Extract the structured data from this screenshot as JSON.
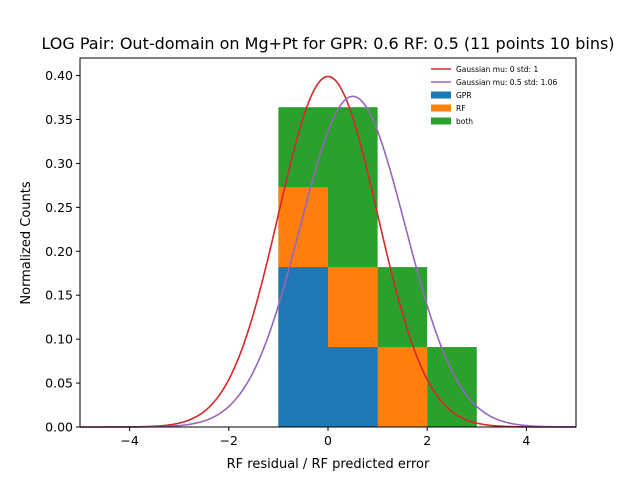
{
  "chart_data": {
    "type": "bar",
    "title": "LOG Pair: Out-domain on Mg+Pt for GPR: 0.6 RF: 0.5 (11 points 10 bins)",
    "xlabel": "RF residual / RF predicted error",
    "ylabel": "Normalized Counts",
    "xlim": [
      -5.0,
      5.0
    ],
    "ylim": [
      0.0,
      0.42
    ],
    "xticks": [
      -4,
      -2,
      0,
      2,
      4
    ],
    "xtick_labels": [
      "−4",
      "−2",
      "0",
      "2",
      "4"
    ],
    "yticks": [
      0.0,
      0.05,
      0.1,
      0.15,
      0.2,
      0.25,
      0.3,
      0.35,
      0.4
    ],
    "ytick_labels": [
      "0.00",
      "0.05",
      "0.10",
      "0.15",
      "0.20",
      "0.25",
      "0.30",
      "0.35",
      "0.40"
    ],
    "grid": false,
    "legend_position": "top-right",
    "bin_edges": [
      -1,
      0,
      1,
      2,
      3
    ],
    "histograms": [
      {
        "name": "both",
        "color": "#2ca02c",
        "values": [
          0.364,
          0.364,
          0.182,
          0.091
        ]
      },
      {
        "name": "RF",
        "color": "#ff7f0e",
        "values": [
          0.273,
          0.182,
          0.091,
          0.0
        ]
      },
      {
        "name": "GPR",
        "color": "#1f77b4",
        "values": [
          0.182,
          0.091,
          0.0,
          0.0
        ]
      }
    ],
    "curves": [
      {
        "name": "Gaussian mu: 0 std: 1",
        "color": "#d62728",
        "mu": 0,
        "std": 1,
        "x_range": [
          -5,
          5
        ]
      },
      {
        "name": "Gaussian mu: 0.5 std: 1.06",
        "color": "#9467bd",
        "mu": 0.5,
        "std": 1.06,
        "x_range": [
          -5,
          5
        ]
      }
    ],
    "legend_order": [
      "Gaussian mu: 0 std: 1",
      "Gaussian mu: 0.5 std: 1.06",
      "GPR",
      "RF",
      "both"
    ]
  }
}
